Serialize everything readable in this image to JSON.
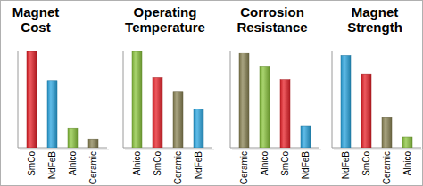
{
  "chart_data": [
    {
      "type": "bar",
      "title": "Magnet Cost",
      "categories": [
        "SmCo",
        "NdFeB",
        "Alnico",
        "Ceramic"
      ],
      "values": [
        100,
        69,
        20,
        9
      ],
      "colors": [
        "#e8232a",
        "#2ba6e0",
        "#8cc63f",
        "#8b8455"
      ],
      "ylim": [
        0,
        100
      ],
      "tick_labels": "x"
    },
    {
      "type": "bar",
      "title": "Operating Temperature",
      "categories": [
        "Alnico",
        "SmCo",
        "Ceramic",
        "NdFeB"
      ],
      "values": [
        100,
        72,
        58,
        40
      ],
      "colors": [
        "#8cc63f",
        "#e8232a",
        "#8b8455",
        "#2ba6e0"
      ],
      "ylim": [
        0,
        100
      ],
      "tick_labels": "x"
    },
    {
      "type": "bar",
      "title": "Corrosion Resistance",
      "categories": [
        "Ceramic",
        "Alnico",
        "SmCo",
        "NdFeB"
      ],
      "values": [
        98,
        84,
        70,
        22
      ],
      "colors": [
        "#8b8455",
        "#8cc63f",
        "#e8232a",
        "#2ba6e0"
      ],
      "ylim": [
        0,
        100
      ],
      "tick_labels": "x"
    },
    {
      "type": "bar",
      "title": "Magnet Strength",
      "categories": [
        "NdFeB",
        "SmCo",
        "Ceramic",
        "Alnico"
      ],
      "values": [
        95,
        76,
        31,
        11
      ],
      "colors": [
        "#2ba6e0",
        "#e8232a",
        "#8b8455",
        "#8cc63f"
      ],
      "ylim": [
        0,
        100
      ],
      "tick_labels": "x"
    }
  ]
}
